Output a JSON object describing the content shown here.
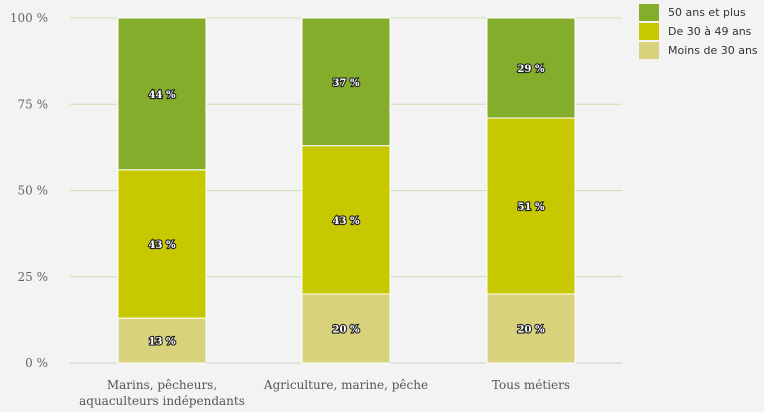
{
  "chart_data": {
    "type": "bar",
    "stacked": true,
    "categories": [
      [
        "Marins, pêcheurs,",
        "aquaculteurs indépendants"
      ],
      [
        "Agriculture, marine, pêche"
      ],
      [
        "Tous métiers"
      ]
    ],
    "series": [
      {
        "name": "Moins de 30 ans",
        "color": "#d8d27c",
        "values": [
          13,
          20,
          20
        ],
        "labels": [
          "13 %",
          "20 %",
          "20 %"
        ]
      },
      {
        "name": "De 30 à 49 ans",
        "color": "#c8c800",
        "values": [
          43,
          43,
          51
        ],
        "labels": [
          "43 %",
          "43 %",
          "51 %"
        ]
      },
      {
        "name": "50 ans et plus",
        "color": "#84ad2c",
        "values": [
          44,
          37,
          29
        ],
        "labels": [
          "44 %",
          "37 %",
          "29 %"
        ]
      }
    ],
    "ylim": [
      0,
      100
    ],
    "yticks": [
      0,
      25,
      50,
      75,
      100
    ],
    "ytick_labels": [
      "0 %",
      "25 %",
      "50 %",
      "75 %",
      "100 %"
    ],
    "grid": true,
    "legend_position": "top-right",
    "legend_order": [
      "50 ans et plus",
      "De 30 à 49 ans",
      "Moins de 30 ans"
    ]
  }
}
